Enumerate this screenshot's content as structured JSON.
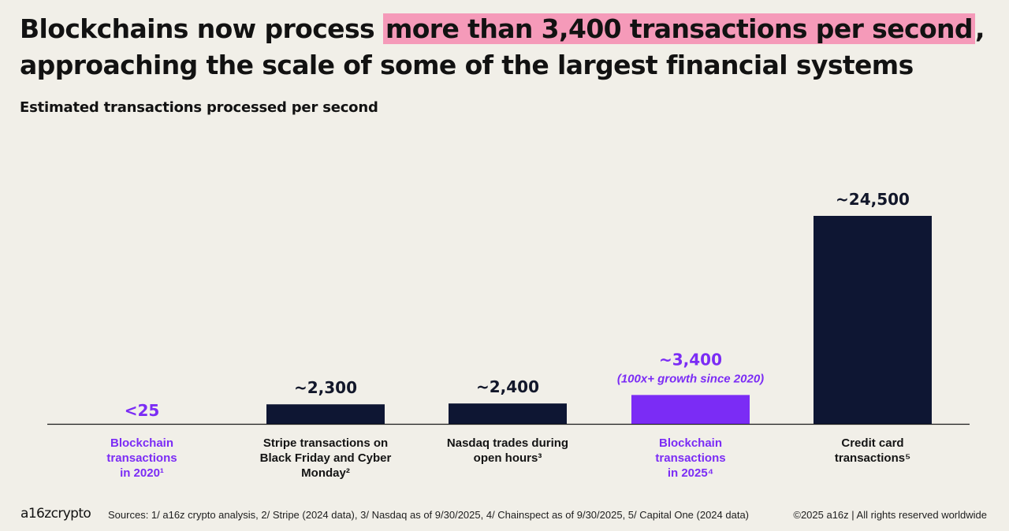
{
  "headline": {
    "pre": "Blockchains now process ",
    "highlight": "more than 3,400 transactions per second",
    "post": ", approaching the scale of some of the largest financial systems"
  },
  "colors": {
    "background": "#f1efe8",
    "bar_dark": "#0e1633",
    "bar_highlight": "#7b2cf5",
    "label_purple": "#7b2cf5",
    "headline_highlight": "#f59ab9"
  },
  "chart_data": {
    "type": "bar",
    "title": "Estimated transactions processed per second",
    "categories": [
      [
        "Blockchain",
        "transactions",
        "in 2020¹"
      ],
      [
        "Stripe transactions on",
        "Black Friday and Cyber",
        "Monday²"
      ],
      [
        "Nasdaq trades during",
        "open hours³"
      ],
      [
        "Blockchain",
        "transactions",
        "in 2025⁴"
      ],
      [
        "Credit card",
        "transactions⁵"
      ]
    ],
    "values": [
      25,
      2300,
      2400,
      3400,
      24500
    ],
    "value_labels": [
      "<25",
      "~2,300",
      "~2,400",
      "~3,400",
      "~24,500"
    ],
    "annotations": [
      "",
      "",
      "",
      "(100x+ growth since 2020)",
      ""
    ],
    "highlight": [
      true,
      false,
      false,
      true,
      false
    ],
    "ylim": [
      0,
      24500
    ],
    "xlabel": "",
    "ylabel": "",
    "grid": false,
    "legend": "none"
  },
  "footer": {
    "logo": "a16zcrypto",
    "sources": "Sources: 1/ a16z crypto analysis, 2/ Stripe (2024 data), 3/ Nasdaq as of 9/30/2025, 4/ Chainspect as of 9/30/2025, 5/ Capital One (2024 data)",
    "copyright": "©2025 a16z | All rights reserved worldwide"
  }
}
